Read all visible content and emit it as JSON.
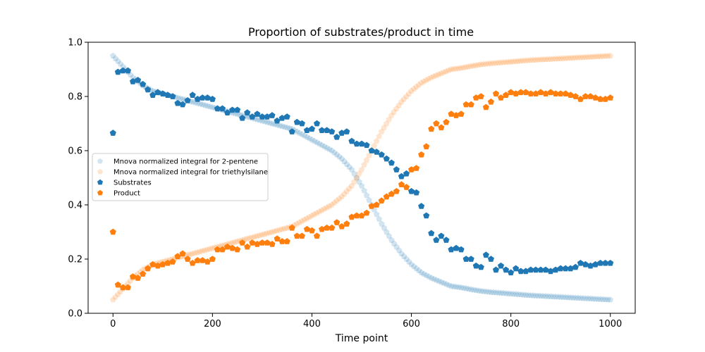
{
  "chart_data": {
    "type": "scatter",
    "title": "Proportion of substrates/product in time",
    "xlabel": "Time point",
    "ylabel": "",
    "xlim": [
      -50,
      1050
    ],
    "ylim": [
      0.0,
      1.0
    ],
    "xticks": [
      0,
      200,
      400,
      600,
      800,
      1000
    ],
    "yticks": [
      0.0,
      0.2,
      0.4,
      0.6,
      0.8,
      1.0
    ],
    "xtick_labels": [
      "0",
      "200",
      "400",
      "600",
      "800",
      "1000"
    ],
    "ytick_labels": [
      "0.0",
      "0.2",
      "0.4",
      "0.6",
      "0.8",
      "1.0"
    ],
    "legend_position": "center-left",
    "grid": false,
    "colors": {
      "blue": "#1f77b4",
      "orange": "#ff7f0e"
    },
    "series": [
      {
        "name": "Mnova normalized integral for 2-pentene",
        "color": "#1f77b4",
        "alpha": 0.2,
        "marker": "pentagon",
        "x": [
          0,
          20,
          40,
          60,
          80,
          100,
          120,
          140,
          160,
          180,
          200,
          220,
          240,
          260,
          280,
          300,
          320,
          340,
          360,
          380,
          400,
          420,
          440,
          460,
          480,
          500,
          520,
          540,
          560,
          580,
          600,
          620,
          640,
          660,
          680,
          700,
          720,
          740,
          760,
          780,
          800,
          820,
          840,
          860,
          880,
          900,
          920,
          940,
          960,
          980,
          1000
        ],
        "y": [
          0.95,
          0.91,
          0.87,
          0.84,
          0.82,
          0.81,
          0.8,
          0.79,
          0.78,
          0.77,
          0.76,
          0.75,
          0.74,
          0.73,
          0.72,
          0.71,
          0.7,
          0.69,
          0.68,
          0.66,
          0.64,
          0.62,
          0.6,
          0.57,
          0.53,
          0.47,
          0.4,
          0.33,
          0.27,
          0.22,
          0.18,
          0.15,
          0.13,
          0.115,
          0.1,
          0.095,
          0.088,
          0.082,
          0.078,
          0.075,
          0.072,
          0.069,
          0.066,
          0.064,
          0.062,
          0.06,
          0.058,
          0.056,
          0.054,
          0.052,
          0.05
        ]
      },
      {
        "name": "Mnova normalized integral for triethylsilane",
        "color": "#ff7f0e",
        "alpha": 0.2,
        "marker": "pentagon",
        "x": [
          0,
          20,
          40,
          60,
          80,
          100,
          120,
          140,
          160,
          180,
          200,
          220,
          240,
          260,
          280,
          300,
          320,
          340,
          360,
          380,
          400,
          420,
          440,
          460,
          480,
          500,
          520,
          540,
          560,
          580,
          600,
          620,
          640,
          660,
          680,
          700,
          720,
          740,
          760,
          780,
          800,
          820,
          840,
          860,
          880,
          900,
          920,
          940,
          960,
          980,
          1000
        ],
        "y": [
          0.05,
          0.09,
          0.13,
          0.16,
          0.18,
          0.19,
          0.2,
          0.21,
          0.22,
          0.23,
          0.24,
          0.25,
          0.26,
          0.27,
          0.28,
          0.29,
          0.3,
          0.31,
          0.32,
          0.34,
          0.36,
          0.38,
          0.4,
          0.43,
          0.47,
          0.53,
          0.6,
          0.67,
          0.73,
          0.78,
          0.82,
          0.85,
          0.87,
          0.885,
          0.9,
          0.905,
          0.912,
          0.918,
          0.922,
          0.925,
          0.928,
          0.931,
          0.934,
          0.936,
          0.938,
          0.94,
          0.942,
          0.944,
          0.946,
          0.948,
          0.95
        ]
      },
      {
        "name": "Substrates",
        "color": "#1f77b4",
        "alpha": 1.0,
        "marker": "pentagon",
        "x": [
          0,
          10,
          20,
          30,
          40,
          50,
          60,
          70,
          80,
          90,
          100,
          110,
          120,
          130,
          140,
          150,
          160,
          170,
          180,
          190,
          200,
          210,
          220,
          230,
          240,
          250,
          260,
          270,
          280,
          290,
          300,
          310,
          320,
          330,
          340,
          350,
          360,
          370,
          380,
          390,
          400,
          410,
          420,
          430,
          440,
          450,
          460,
          470,
          480,
          490,
          500,
          510,
          520,
          530,
          540,
          550,
          560,
          570,
          580,
          590,
          600,
          610,
          620,
          630,
          640,
          650,
          660,
          670,
          680,
          690,
          700,
          710,
          720,
          730,
          740,
          750,
          760,
          770,
          780,
          790,
          800,
          810,
          820,
          830,
          840,
          850,
          860,
          870,
          880,
          890,
          900,
          910,
          920,
          930,
          940,
          950,
          960,
          970,
          980,
          990,
          1000
        ],
        "y": [
          0.665,
          0.89,
          0.895,
          0.895,
          0.855,
          0.86,
          0.845,
          0.825,
          0.805,
          0.815,
          0.81,
          0.805,
          0.8,
          0.775,
          0.77,
          0.785,
          0.805,
          0.79,
          0.795,
          0.795,
          0.79,
          0.755,
          0.755,
          0.74,
          0.75,
          0.75,
          0.72,
          0.74,
          0.725,
          0.735,
          0.725,
          0.725,
          0.73,
          0.71,
          0.72,
          0.725,
          0.67,
          0.705,
          0.7,
          0.675,
          0.68,
          0.7,
          0.675,
          0.675,
          0.67,
          0.65,
          0.665,
          0.67,
          0.635,
          0.625,
          0.625,
          0.62,
          0.6,
          0.595,
          0.585,
          0.57,
          0.555,
          0.53,
          0.505,
          0.515,
          0.45,
          0.445,
          0.395,
          0.36,
          0.295,
          0.27,
          0.285,
          0.27,
          0.235,
          0.24,
          0.235,
          0.2,
          0.2,
          0.175,
          0.17,
          0.215,
          0.2,
          0.16,
          0.175,
          0.16,
          0.15,
          0.165,
          0.155,
          0.155,
          0.16,
          0.16,
          0.16,
          0.16,
          0.155,
          0.16,
          0.165,
          0.165,
          0.165,
          0.17,
          0.185,
          0.18,
          0.175,
          0.18,
          0.185,
          0.185,
          0.185
        ]
      },
      {
        "name": "Product",
        "color": "#ff7f0e",
        "alpha": 1.0,
        "marker": "pentagon",
        "x": [
          0,
          10,
          20,
          30,
          40,
          50,
          60,
          70,
          80,
          90,
          100,
          110,
          120,
          130,
          140,
          150,
          160,
          170,
          180,
          190,
          200,
          210,
          220,
          230,
          240,
          250,
          260,
          270,
          280,
          290,
          300,
          310,
          320,
          330,
          340,
          350,
          360,
          370,
          380,
          390,
          400,
          410,
          420,
          430,
          440,
          450,
          460,
          470,
          480,
          490,
          500,
          510,
          520,
          530,
          540,
          550,
          560,
          570,
          580,
          590,
          600,
          610,
          620,
          630,
          640,
          650,
          660,
          670,
          680,
          690,
          700,
          710,
          720,
          730,
          740,
          750,
          760,
          770,
          780,
          790,
          800,
          810,
          820,
          830,
          840,
          850,
          860,
          870,
          880,
          890,
          900,
          910,
          920,
          930,
          940,
          950,
          960,
          970,
          980,
          990,
          1000
        ],
        "y": [
          0.3,
          0.105,
          0.095,
          0.095,
          0.135,
          0.13,
          0.145,
          0.165,
          0.18,
          0.175,
          0.18,
          0.185,
          0.19,
          0.21,
          0.22,
          0.2,
          0.185,
          0.195,
          0.195,
          0.19,
          0.2,
          0.235,
          0.235,
          0.245,
          0.24,
          0.235,
          0.26,
          0.245,
          0.26,
          0.255,
          0.26,
          0.26,
          0.255,
          0.275,
          0.265,
          0.265,
          0.315,
          0.285,
          0.285,
          0.31,
          0.305,
          0.285,
          0.31,
          0.315,
          0.315,
          0.335,
          0.32,
          0.33,
          0.355,
          0.36,
          0.36,
          0.37,
          0.395,
          0.4,
          0.415,
          0.43,
          0.44,
          0.45,
          0.475,
          0.465,
          0.53,
          0.535,
          0.585,
          0.615,
          0.68,
          0.7,
          0.685,
          0.705,
          0.735,
          0.73,
          0.735,
          0.77,
          0.77,
          0.795,
          0.8,
          0.76,
          0.78,
          0.81,
          0.795,
          0.805,
          0.815,
          0.81,
          0.815,
          0.815,
          0.81,
          0.81,
          0.815,
          0.81,
          0.815,
          0.81,
          0.81,
          0.81,
          0.805,
          0.8,
          0.79,
          0.8,
          0.8,
          0.795,
          0.79,
          0.79,
          0.795
        ]
      }
    ]
  }
}
